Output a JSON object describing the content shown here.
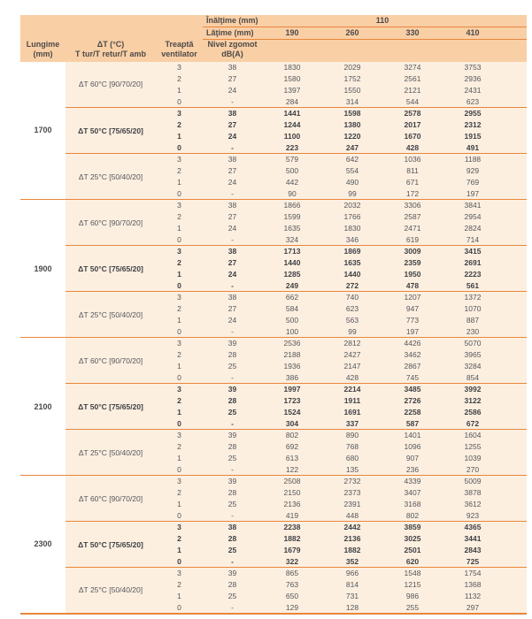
{
  "colors": {
    "accent_orange": "#E8863B",
    "header_bg": "#F9CFA6",
    "body_bg": "#FCEFE0",
    "header_text": "#4D4A48",
    "body_text": "#55565A"
  },
  "header": {
    "inaltime_label": "Înălţime (mm)",
    "inaltime_value": "110",
    "latime_label": "Lăţime (mm)",
    "width_values": [
      "190",
      "260",
      "330",
      "410"
    ],
    "lungime_label": "Lungime\n(mm)",
    "dt_label": "ΔT (°C)\nT tur/T retur/T amb",
    "treapta_label": "Treaptă\nventilator",
    "nivel_label": "Nivel zgomot\ndB(A)"
  },
  "groups": [
    {
      "lungime": "1700",
      "sections": [
        {
          "label": "ΔT 60°C [90/70/20]",
          "bold": false,
          "rows": [
            {
              "treapta": "3",
              "db": "38",
              "values": [
                "1830",
                "2029",
                "3274",
                "3753"
              ]
            },
            {
              "treapta": "2",
              "db": "27",
              "values": [
                "1580",
                "1752",
                "2561",
                "2936"
              ]
            },
            {
              "treapta": "1",
              "db": "24",
              "values": [
                "1397",
                "1550",
                "2121",
                "2431"
              ]
            },
            {
              "treapta": "0",
              "db": "-",
              "values": [
                "284",
                "314",
                "544",
                "623"
              ]
            }
          ]
        },
        {
          "label": "ΔT 50°C [75/65/20]",
          "bold": true,
          "rows": [
            {
              "treapta": "3",
              "db": "38",
              "values": [
                "1441",
                "1598",
                "2578",
                "2955"
              ]
            },
            {
              "treapta": "2",
              "db": "27",
              "values": [
                "1244",
                "1380",
                "2017",
                "2312"
              ]
            },
            {
              "treapta": "1",
              "db": "24",
              "values": [
                "1100",
                "1220",
                "1670",
                "1915"
              ]
            },
            {
              "treapta": "0",
              "db": "-",
              "values": [
                "223",
                "247",
                "428",
                "491"
              ]
            }
          ]
        },
        {
          "label": "ΔT 25°C [50/40/20]",
          "bold": false,
          "rows": [
            {
              "treapta": "3",
              "db": "38",
              "values": [
                "579",
                "642",
                "1036",
                "1188"
              ]
            },
            {
              "treapta": "2",
              "db": "27",
              "values": [
                "500",
                "554",
                "811",
                "929"
              ]
            },
            {
              "treapta": "1",
              "db": "24",
              "values": [
                "442",
                "490",
                "671",
                "769"
              ]
            },
            {
              "treapta": "0",
              "db": "-",
              "values": [
                "90",
                "99",
                "172",
                "197"
              ]
            }
          ]
        }
      ]
    },
    {
      "lungime": "1900",
      "sections": [
        {
          "label": "ΔT 60°C [90/70/20]",
          "bold": false,
          "rows": [
            {
              "treapta": "3",
              "db": "38",
              "values": [
                "1866",
                "2032",
                "3306",
                "3841"
              ]
            },
            {
              "treapta": "2",
              "db": "27",
              "values": [
                "1599",
                "1766",
                "2587",
                "2954"
              ]
            },
            {
              "treapta": "1",
              "db": "24",
              "values": [
                "1635",
                "1830",
                "2471",
                "2824"
              ]
            },
            {
              "treapta": "0",
              "db": "-",
              "values": [
                "324",
                "346",
                "619",
                "714"
              ]
            }
          ]
        },
        {
          "label": "ΔT 50°C [75/65/20]",
          "bold": true,
          "rows": [
            {
              "treapta": "3",
              "db": "38",
              "values": [
                "1713",
                "1869",
                "3009",
                "3415"
              ]
            },
            {
              "treapta": "2",
              "db": "27",
              "values": [
                "1440",
                "1635",
                "2359",
                "2691"
              ]
            },
            {
              "treapta": "1",
              "db": "24",
              "values": [
                "1285",
                "1440",
                "1950",
                "2223"
              ]
            },
            {
              "treapta": "0",
              "db": "-",
              "values": [
                "249",
                "272",
                "478",
                "561"
              ]
            }
          ]
        },
        {
          "label": "ΔT 25°C [50/40/20]",
          "bold": false,
          "rows": [
            {
              "treapta": "3",
              "db": "38",
              "values": [
                "662",
                "740",
                "1207",
                "1372"
              ]
            },
            {
              "treapta": "2",
              "db": "27",
              "values": [
                "584",
                "623",
                "947",
                "1070"
              ]
            },
            {
              "treapta": "1",
              "db": "24",
              "values": [
                "500",
                "563",
                "773",
                "887"
              ]
            },
            {
              "treapta": "0",
              "db": "-",
              "values": [
                "100",
                "99",
                "197",
                "230"
              ]
            }
          ]
        }
      ]
    },
    {
      "lungime": "2100",
      "sections": [
        {
          "label": "ΔT 60°C [90/70/20]",
          "bold": false,
          "rows": [
            {
              "treapta": "3",
              "db": "39",
              "values": [
                "2536",
                "2812",
                "4426",
                "5070"
              ]
            },
            {
              "treapta": "2",
              "db": "28",
              "values": [
                "2188",
                "2427",
                "3462",
                "3965"
              ]
            },
            {
              "treapta": "1",
              "db": "25",
              "values": [
                "1936",
                "2147",
                "2867",
                "3284"
              ]
            },
            {
              "treapta": "0",
              "db": "-",
              "values": [
                "386",
                "428",
                "745",
                "854"
              ]
            }
          ]
        },
        {
          "label": "ΔT 50°C [75/65/20]",
          "bold": true,
          "rows": [
            {
              "treapta": "3",
              "db": "39",
              "values": [
                "1997",
                "2214",
                "3485",
                "3992"
              ]
            },
            {
              "treapta": "2",
              "db": "28",
              "values": [
                "1723",
                "1911",
                "2726",
                "3122"
              ]
            },
            {
              "treapta": "1",
              "db": "25",
              "values": [
                "1524",
                "1691",
                "2258",
                "2586"
              ]
            },
            {
              "treapta": "0",
              "db": "-",
              "values": [
                "304",
                "337",
                "587",
                "672"
              ]
            }
          ]
        },
        {
          "label": "ΔT 25°C [50/40/20]",
          "bold": false,
          "rows": [
            {
              "treapta": "3",
              "db": "39",
              "values": [
                "802",
                "890",
                "1401",
                "1604"
              ]
            },
            {
              "treapta": "2",
              "db": "28",
              "values": [
                "692",
                "768",
                "1096",
                "1255"
              ]
            },
            {
              "treapta": "1",
              "db": "25",
              "values": [
                "613",
                "680",
                "907",
                "1039"
              ]
            },
            {
              "treapta": "0",
              "db": "-",
              "values": [
                "122",
                "135",
                "236",
                "270"
              ]
            }
          ]
        }
      ]
    },
    {
      "lungime": "2300",
      "sections": [
        {
          "label": "ΔT 60°C [90/70/20]",
          "bold": false,
          "rows": [
            {
              "treapta": "3",
              "db": "39",
              "values": [
                "2508",
                "2732",
                "4339",
                "5009"
              ]
            },
            {
              "treapta": "2",
              "db": "28",
              "values": [
                "2150",
                "2373",
                "3407",
                "3878"
              ]
            },
            {
              "treapta": "1",
              "db": "25",
              "values": [
                "2136",
                "2391",
                "3168",
                "3612"
              ]
            },
            {
              "treapta": "0",
              "db": "-",
              "values": [
                "419",
                "448",
                "802",
                "923"
              ]
            }
          ]
        },
        {
          "label": "ΔT 50°C [75/65/20]",
          "bold": true,
          "rows": [
            {
              "treapta": "3",
              "db": "38",
              "values": [
                "2238",
                "2442",
                "3859",
                "4365"
              ]
            },
            {
              "treapta": "2",
              "db": "28",
              "values": [
                "1882",
                "2136",
                "3025",
                "3441"
              ]
            },
            {
              "treapta": "1",
              "db": "25",
              "values": [
                "1679",
                "1882",
                "2501",
                "2843"
              ]
            },
            {
              "treapta": "0",
              "db": "-",
              "values": [
                "322",
                "352",
                "620",
                "725"
              ]
            }
          ]
        },
        {
          "label": "ΔT 25°C [50/40/20]",
          "bold": false,
          "rows": [
            {
              "treapta": "3",
              "db": "39",
              "values": [
                "865",
                "966",
                "1548",
                "1754"
              ]
            },
            {
              "treapta": "2",
              "db": "28",
              "values": [
                "763",
                "814",
                "1215",
                "1368"
              ]
            },
            {
              "treapta": "1",
              "db": "25",
              "values": [
                "650",
                "731",
                "986",
                "1132"
              ]
            },
            {
              "treapta": "0",
              "db": "-",
              "values": [
                "129",
                "128",
                "255",
                "297"
              ]
            }
          ]
        }
      ]
    }
  ]
}
